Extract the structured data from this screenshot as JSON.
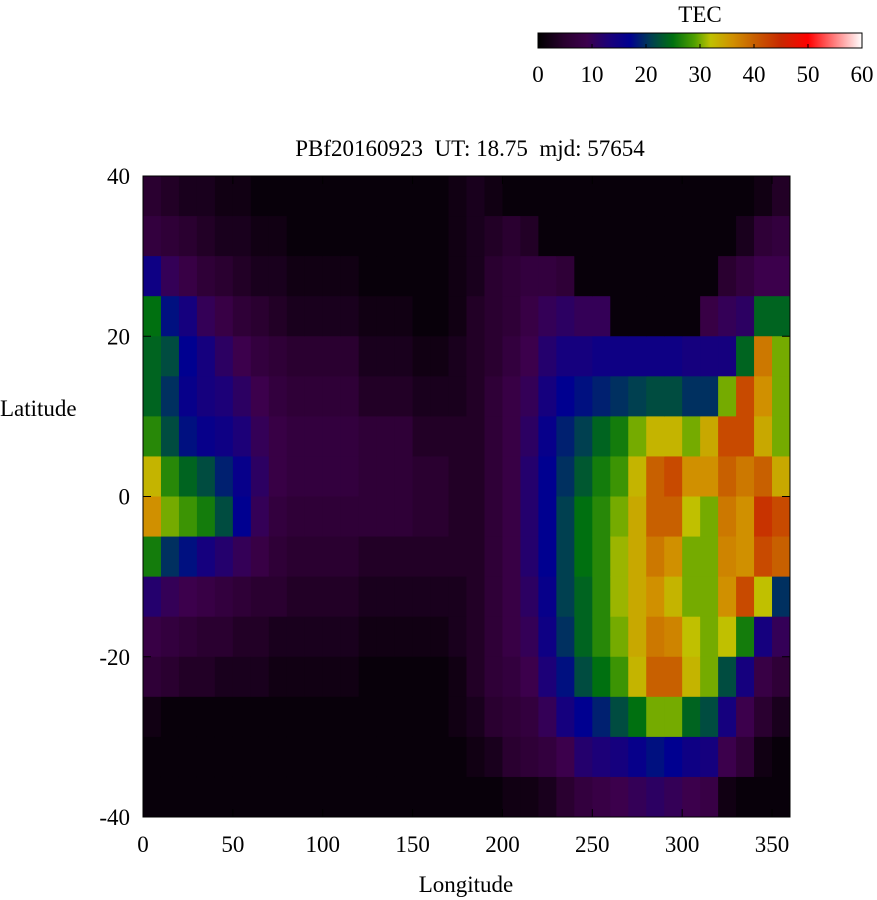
{
  "chart_data": {
    "type": "heatmap",
    "title": "PBf20160923  UT: 18.75  mjd: 57654",
    "xlabel": "Longitude",
    "ylabel": "Latitude",
    "xlim": [
      0,
      360
    ],
    "ylim": [
      -40,
      40
    ],
    "xticks": [
      "0",
      "50",
      "100",
      "150",
      "200",
      "250",
      "300",
      "350"
    ],
    "xtick_values": [
      0,
      50,
      100,
      150,
      200,
      250,
      300,
      350
    ],
    "yticks": [
      "40",
      "20",
      "0",
      "-20",
      "-40"
    ],
    "ytick_values": [
      40,
      20,
      0,
      -20,
      -40
    ],
    "colorbar": {
      "label": "TEC",
      "range": [
        0,
        60
      ],
      "ticks": [
        "0",
        "10",
        "20",
        "30",
        "40",
        "50",
        "60"
      ],
      "tick_values": [
        0,
        10,
        20,
        30,
        40,
        50,
        60
      ],
      "placement": "top-right",
      "colormap_stops": [
        {
          "v": 0,
          "c": "#000000"
        },
        {
          "v": 5,
          "c": "#2a0030"
        },
        {
          "v": 9,
          "c": "#3c004c"
        },
        {
          "v": 13,
          "c": "#1c0078"
        },
        {
          "v": 17,
          "c": "#000090"
        },
        {
          "v": 21,
          "c": "#004050"
        },
        {
          "v": 25,
          "c": "#007010"
        },
        {
          "v": 29,
          "c": "#50a000"
        },
        {
          "v": 32,
          "c": "#c0c000"
        },
        {
          "v": 36,
          "c": "#d09000"
        },
        {
          "v": 40,
          "c": "#c86000"
        },
        {
          "v": 45,
          "c": "#c82800"
        },
        {
          "v": 50,
          "c": "#ff0000"
        },
        {
          "v": 55,
          "c": "#ff8080"
        },
        {
          "v": 60,
          "c": "#ffffff"
        }
      ]
    },
    "grid": false,
    "x": [
      5,
      15,
      25,
      35,
      45,
      55,
      65,
      75,
      85,
      95,
      105,
      115,
      125,
      135,
      145,
      155,
      165,
      175,
      185,
      195,
      205,
      215,
      225,
      235,
      245,
      255,
      265,
      275,
      285,
      295,
      305,
      315,
      325,
      335,
      345,
      355
    ],
    "y": [
      37.5,
      32.5,
      27.5,
      22.5,
      17.5,
      12.5,
      7.5,
      2.5,
      -2.5,
      -7.5,
      -12.5,
      -17.5,
      -22.5,
      -27.5,
      -32.5,
      -37.5
    ],
    "z_by_longitude": [
      [
        5,
        7,
        15,
        25,
        24,
        24,
        27,
        33,
        36,
        26,
        12,
        8,
        6,
        2,
        1,
        1
      ],
      [
        4,
        6,
        10,
        18,
        22,
        20,
        22,
        27,
        30,
        20,
        10,
        7,
        5,
        1,
        1,
        1
      ],
      [
        3,
        5,
        8,
        14,
        17,
        16,
        18,
        24,
        28,
        18,
        9,
        6,
        4,
        1,
        1,
        1
      ],
      [
        3,
        4,
        6,
        10,
        14,
        14,
        16,
        22,
        26,
        14,
        8,
        5,
        4,
        1,
        1,
        1
      ],
      [
        2,
        3,
        5,
        8,
        11,
        13,
        15,
        19,
        22,
        12,
        7,
        5,
        3,
        1,
        1,
        1
      ],
      [
        2,
        3,
        4,
        6,
        9,
        11,
        13,
        16,
        17,
        10,
        6,
        4,
        3,
        1,
        1,
        1
      ],
      [
        1,
        2,
        3,
        5,
        7,
        9,
        10,
        11,
        10,
        8,
        5,
        4,
        3,
        1,
        1,
        1
      ],
      [
        1,
        2,
        3,
        4,
        6,
        7,
        8,
        8,
        7,
        6,
        5,
        3,
        2,
        1,
        1,
        1
      ],
      [
        1,
        1,
        2,
        3,
        5,
        6,
        7,
        7,
        6,
        5,
        4,
        3,
        2,
        1,
        1,
        1
      ],
      [
        1,
        1,
        2,
        3,
        5,
        6,
        7,
        7,
        6,
        5,
        4,
        3,
        2,
        1,
        1,
        1
      ],
      [
        1,
        1,
        2,
        3,
        5,
        6,
        7,
        7,
        6,
        5,
        4,
        3,
        2,
        1,
        1,
        1
      ],
      [
        1,
        1,
        2,
        3,
        5,
        6,
        7,
        7,
        6,
        5,
        4,
        3,
        2,
        1,
        1,
        1
      ],
      [
        1,
        1,
        1,
        2,
        3,
        4,
        6,
        6,
        6,
        4,
        3,
        2,
        1,
        1,
        1,
        1
      ],
      [
        1,
        1,
        1,
        2,
        3,
        4,
        6,
        6,
        6,
        4,
        3,
        2,
        1,
        1,
        1,
        1
      ],
      [
        1,
        1,
        1,
        2,
        3,
        4,
        6,
        6,
        6,
        4,
        3,
        2,
        1,
        1,
        1,
        1
      ],
      [
        1,
        1,
        1,
        1,
        2,
        3,
        4,
        5,
        5,
        4,
        3,
        2,
        1,
        1,
        1,
        1
      ],
      [
        1,
        1,
        1,
        1,
        2,
        3,
        4,
        5,
        5,
        4,
        3,
        2,
        1,
        1,
        1,
        1
      ],
      [
        2,
        2,
        2,
        2,
        3,
        3,
        4,
        4,
        4,
        4,
        3,
        3,
        2,
        2,
        1,
        1
      ],
      [
        3,
        3,
        3,
        4,
        4,
        4,
        4,
        4,
        4,
        4,
        4,
        4,
        4,
        3,
        2,
        1
      ],
      [
        2,
        4,
        5,
        5,
        5,
        6,
        6,
        6,
        6,
        6,
        6,
        6,
        6,
        5,
        3,
        1
      ],
      [
        1,
        5,
        6,
        6,
        7,
        8,
        8,
        8,
        8,
        8,
        8,
        8,
        7,
        6,
        5,
        2
      ],
      [
        1,
        4,
        7,
        8,
        9,
        10,
        11,
        12,
        12,
        12,
        11,
        10,
        9,
        7,
        6,
        2
      ],
      [
        1,
        1,
        7,
        10,
        12,
        14,
        16,
        17,
        17,
        17,
        16,
        15,
        13,
        10,
        7,
        3
      ],
      [
        1,
        1,
        6,
        11,
        14,
        17,
        19,
        20,
        21,
        21,
        21,
        20,
        18,
        14,
        9,
        5
      ],
      [
        1,
        1,
        1,
        10,
        14,
        18,
        21,
        23,
        25,
        25,
        24,
        24,
        22,
        17,
        12,
        7
      ],
      [
        1,
        1,
        1,
        10,
        15,
        19,
        24,
        26,
        27,
        27,
        27,
        27,
        25,
        19,
        13,
        8
      ],
      [
        1,
        1,
        1,
        1,
        15,
        20,
        26,
        28,
        30,
        31,
        31,
        30,
        28,
        22,
        14,
        9
      ],
      [
        1,
        1,
        1,
        1,
        15,
        21,
        30,
        33,
        34,
        34,
        34,
        34,
        33,
        25,
        16,
        10
      ],
      [
        1,
        1,
        1,
        1,
        15,
        22,
        33,
        40,
        40,
        38,
        36,
        38,
        40,
        30,
        18,
        11
      ],
      [
        1,
        1,
        1,
        1,
        15,
        22,
        33,
        42,
        40,
        36,
        33,
        37,
        40,
        30,
        17,
        10
      ],
      [
        1,
        1,
        1,
        1,
        14,
        20,
        30,
        36,
        32,
        30,
        30,
        32,
        33,
        24,
        15,
        9
      ],
      [
        1,
        1,
        1,
        8,
        14,
        20,
        34,
        36,
        30,
        30,
        30,
        30,
        30,
        22,
        14,
        8
      ],
      [
        1,
        1,
        5,
        10,
        14,
        30,
        42,
        40,
        38,
        37,
        36,
        32,
        22,
        14,
        9,
        2
      ],
      [
        1,
        3,
        7,
        11,
        24,
        42,
        42,
        38,
        36,
        36,
        42,
        26,
        14,
        9,
        6,
        1
      ],
      [
        2,
        6,
        9,
        24,
        38,
        36,
        34,
        40,
        44,
        42,
        32,
        14,
        8,
        5,
        2,
        1
      ],
      [
        4,
        7,
        9,
        24,
        30,
        30,
        30,
        34,
        42,
        40,
        20,
        10,
        6,
        3,
        1,
        1
      ]
    ]
  }
}
